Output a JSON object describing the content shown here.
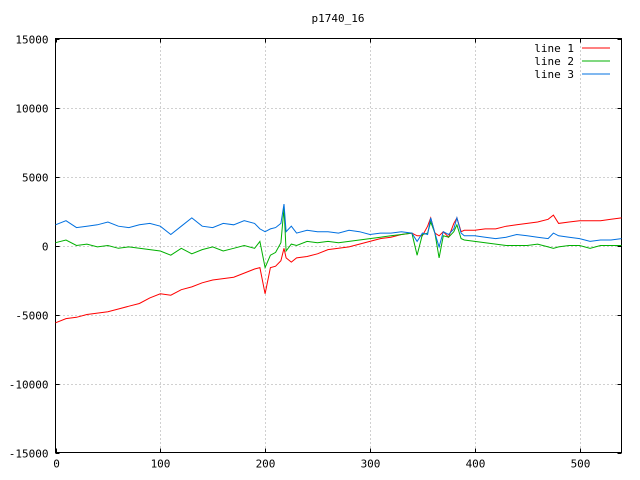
{
  "chart_data": {
    "type": "line",
    "title": "p1740_16",
    "xlabel": "",
    "ylabel": "",
    "xlim": [
      0,
      540
    ],
    "ylim": [
      -15000,
      15000
    ],
    "x_ticks": [
      0,
      100,
      200,
      300,
      400,
      500
    ],
    "y_ticks": [
      -15000,
      -10000,
      -5000,
      0,
      5000,
      10000,
      15000
    ],
    "grid": true,
    "legend_position": "top-right",
    "series": [
      {
        "name": "line 1",
        "color": "#ff0000",
        "x": [
          0,
          10,
          20,
          30,
          40,
          50,
          60,
          70,
          80,
          90,
          100,
          110,
          120,
          130,
          140,
          150,
          160,
          170,
          180,
          190,
          195,
          200,
          205,
          210,
          215,
          218,
          220,
          225,
          230,
          240,
          250,
          260,
          270,
          280,
          290,
          300,
          310,
          320,
          330,
          340,
          345,
          350,
          355,
          358,
          362,
          366,
          370,
          375,
          380,
          383,
          387,
          390,
          400,
          410,
          420,
          430,
          440,
          450,
          460,
          470,
          475,
          480,
          490,
          500,
          510,
          520,
          530,
          540
        ],
        "y": [
          -5600,
          -5300,
          -5200,
          -5000,
          -4900,
          -4800,
          -4600,
          -4400,
          -4200,
          -3800,
          -3500,
          -3600,
          -3200,
          -3000,
          -2700,
          -2500,
          -2400,
          -2300,
          -2000,
          -1700,
          -1600,
          -3500,
          -1600,
          -1500,
          -1100,
          -200,
          -900,
          -1200,
          -900,
          -800,
          -600,
          -300,
          -200,
          -100,
          100,
          300,
          500,
          600,
          800,
          900,
          700,
          700,
          1400,
          2000,
          900,
          700,
          1000,
          600,
          1600,
          2000,
          1000,
          1100,
          1100,
          1200,
          1200,
          1400,
          1500,
          1600,
          1700,
          1900,
          2200,
          1600,
          1700,
          1800,
          1800,
          1800,
          1900,
          2000
        ]
      },
      {
        "name": "line 2",
        "color": "#00b000",
        "x": [
          0,
          10,
          20,
          30,
          40,
          50,
          60,
          70,
          80,
          90,
          100,
          110,
          120,
          130,
          140,
          150,
          160,
          170,
          180,
          190,
          195,
          200,
          205,
          210,
          215,
          218,
          220,
          225,
          230,
          240,
          250,
          260,
          270,
          280,
          290,
          300,
          310,
          320,
          330,
          340,
          345,
          350,
          355,
          358,
          362,
          366,
          370,
          375,
          380,
          383,
          387,
          390,
          400,
          410,
          420,
          430,
          440,
          450,
          460,
          470,
          475,
          480,
          490,
          500,
          510,
          520,
          530,
          540
        ],
        "y": [
          200,
          400,
          0,
          100,
          -100,
          0,
          -200,
          -100,
          -200,
          -300,
          -400,
          -700,
          -200,
          -600,
          -300,
          -100,
          -400,
          -200,
          0,
          -200,
          300,
          -1600,
          -700,
          -500,
          200,
          2700,
          -400,
          100,
          0,
          300,
          200,
          300,
          200,
          300,
          400,
          500,
          600,
          700,
          800,
          900,
          -700,
          800,
          900,
          1700,
          900,
          -900,
          700,
          600,
          1000,
          1500,
          500,
          400,
          300,
          200,
          100,
          0,
          0,
          0,
          100,
          -100,
          -200,
          -100,
          0,
          0,
          -200,
          0,
          0,
          0
        ]
      },
      {
        "name": "line 3",
        "color": "#0070e0",
        "x": [
          0,
          10,
          20,
          30,
          40,
          50,
          60,
          70,
          80,
          90,
          100,
          110,
          120,
          130,
          140,
          150,
          160,
          170,
          180,
          190,
          195,
          200,
          205,
          210,
          215,
          218,
          220,
          225,
          230,
          240,
          250,
          260,
          270,
          280,
          290,
          300,
          310,
          320,
          330,
          340,
          345,
          350,
          355,
          358,
          362,
          366,
          370,
          375,
          380,
          383,
          387,
          390,
          400,
          410,
          420,
          430,
          440,
          450,
          460,
          470,
          475,
          480,
          490,
          500,
          510,
          520,
          530,
          540
        ],
        "y": [
          1500,
          1800,
          1300,
          1400,
          1500,
          1700,
          1400,
          1300,
          1500,
          1600,
          1400,
          800,
          1400,
          2000,
          1400,
          1300,
          1600,
          1500,
          1800,
          1600,
          1200,
          1000,
          1200,
          1300,
          1600,
          3000,
          1000,
          1400,
          900,
          1100,
          1000,
          1000,
          900,
          1100,
          1000,
          800,
          900,
          900,
          1000,
          900,
          300,
          900,
          800,
          2000,
          900,
          -100,
          1000,
          800,
          1200,
          2000,
          900,
          700,
          700,
          600,
          500,
          600,
          800,
          700,
          600,
          500,
          900,
          700,
          600,
          500,
          300,
          400,
          400,
          500
        ]
      }
    ]
  }
}
